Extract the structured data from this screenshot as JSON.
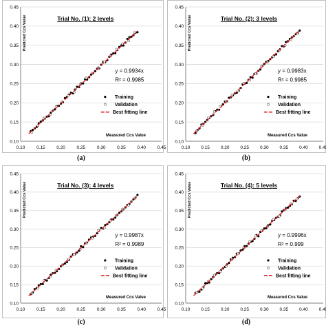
{
  "panels": [
    {
      "title": "Trial No. (1): 2 levels",
      "label": "(a)",
      "equation": "y = 0.9934x",
      "r2": "R² = 0.9985",
      "slope": 0.9934
    },
    {
      "title": "Trial No. (2): 3 levels",
      "label": "(b)",
      "equation": "y = 0.9983x",
      "r2": "R² = 0.9985",
      "slope": 0.9983
    },
    {
      "title": "Trial No. (3): 4 levels",
      "label": "(c)",
      "equation": "y = 0.9987x",
      "r2": "R² = 0.9989",
      "slope": 0.9987
    },
    {
      "title": "Trial No. (4): 5 levels",
      "label": "(d)",
      "equation": "y = 0.9996x",
      "r2": "R² = 0.999",
      "slope": 0.9996
    }
  ],
  "chart_data": {
    "type": "scatter",
    "xlabel": "Measured Ccs Value",
    "ylabel": "Predicted Ccs Value",
    "xlim": [
      0.1,
      0.45
    ],
    "ylim": [
      0.1,
      0.45
    ],
    "x_ticks": [
      "0.10",
      "0.15",
      "0.20",
      "0.25",
      "0.30",
      "0.35",
      "0.40",
      "0.45"
    ],
    "y_ticks": [
      "0.10",
      "0.15",
      "0.20",
      "0.25",
      "0.30",
      "0.35",
      "0.40",
      "0.45"
    ],
    "legend": {
      "placement": "right",
      "entries": [
        "Training",
        "Validation",
        "Best fitting line"
      ]
    },
    "colors": {
      "training": "#000000",
      "validation": "#555555",
      "fit_line": "#e02020"
    },
    "fit_line_x": [
      0.12,
      0.39
    ],
    "training_x": [
      0.125,
      0.13,
      0.135,
      0.14,
      0.145,
      0.15,
      0.155,
      0.16,
      0.165,
      0.17,
      0.175,
      0.18,
      0.185,
      0.19,
      0.195,
      0.2,
      0.205,
      0.21,
      0.215,
      0.22,
      0.225,
      0.23,
      0.235,
      0.24,
      0.245,
      0.25,
      0.255,
      0.26,
      0.265,
      0.27,
      0.275,
      0.28,
      0.285,
      0.29,
      0.295,
      0.3,
      0.305,
      0.31,
      0.315,
      0.32,
      0.325,
      0.33,
      0.335,
      0.34,
      0.345,
      0.35,
      0.355,
      0.36,
      0.365,
      0.37,
      0.375,
      0.38,
      0.385,
      0.39
    ],
    "validation_x": [
      0.128,
      0.143,
      0.158,
      0.173,
      0.188,
      0.203,
      0.218,
      0.233,
      0.248,
      0.263,
      0.278,
      0.293,
      0.308,
      0.323,
      0.338,
      0.353,
      0.368,
      0.383
    ]
  }
}
